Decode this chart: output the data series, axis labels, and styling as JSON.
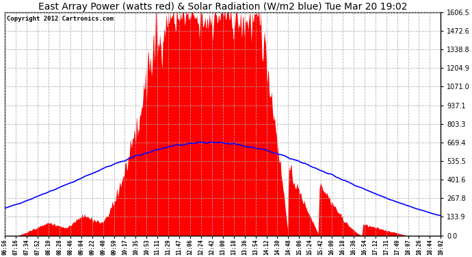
{
  "title": "East Array Power (watts red) & Solar Radiation (W/m2 blue) Tue Mar 20 19:02",
  "copyright": "Copyright 2012 Cartronics.com",
  "bg_color": "#ffffff",
  "plot_bg_color": "#ffffff",
  "grid_color": "#aaaaaa",
  "ymax": 1606.5,
  "ymin": 0.0,
  "yticks": [
    0.0,
    133.9,
    267.8,
    401.6,
    535.5,
    669.4,
    803.3,
    937.1,
    1071.0,
    1204.9,
    1338.8,
    1472.6,
    1606.5
  ],
  "xtick_labels": [
    "06:56",
    "07:16",
    "07:34",
    "07:52",
    "08:10",
    "08:28",
    "08:46",
    "09:04",
    "09:22",
    "09:40",
    "09:59",
    "10:17",
    "10:35",
    "10:53",
    "11:11",
    "11:29",
    "11:47",
    "12:06",
    "12:24",
    "12:42",
    "13:00",
    "13:18",
    "13:36",
    "13:54",
    "14:12",
    "14:30",
    "14:48",
    "15:06",
    "15:24",
    "15:42",
    "16:00",
    "16:18",
    "16:36",
    "16:54",
    "17:12",
    "17:31",
    "17:49",
    "18:07",
    "18:26",
    "18:44",
    "19:02"
  ],
  "red_color": "#ff0000",
  "blue_color": "#0000ff",
  "title_fontsize": 10,
  "copyright_fontsize": 6.5
}
